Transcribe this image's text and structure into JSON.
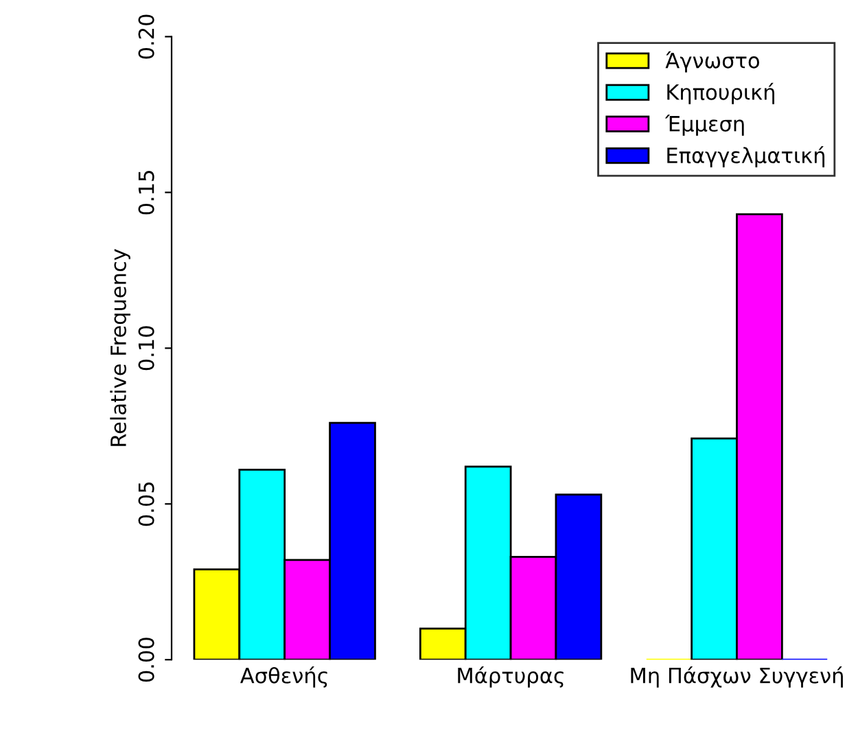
{
  "chart_data": {
    "type": "bar",
    "ylabel": "Relative Frequency",
    "categories": [
      "Ασθενής",
      "Μάρτυρας",
      "Μη Πάσχων Συγγενή"
    ],
    "series": [
      {
        "name": "Άγνωστο",
        "color": "#ffff00",
        "values": [
          0.029,
          0.01,
          0
        ]
      },
      {
        "name": "Κηπουρική",
        "color": "#00ffff",
        "values": [
          0.061,
          0.062,
          0.071
        ]
      },
      {
        "name": "Έμμεση",
        "color": "#ff00ff",
        "values": [
          0.032,
          0.033,
          0.143
        ]
      },
      {
        "name": "Επαγγελματική",
        "color": "#0000ff",
        "values": [
          0.076,
          0.053,
          0
        ]
      }
    ],
    "ylim": [
      0,
      0.2
    ],
    "yticks": [
      {
        "value": 0,
        "label": "0.00"
      },
      {
        "value": 0.05,
        "label": "0.05"
      },
      {
        "value": 0.1,
        "label": "0.10"
      },
      {
        "value": 0.15,
        "label": "0.15"
      },
      {
        "value": 0.2,
        "label": "0.20"
      }
    ],
    "grid": false,
    "legend": "top right"
  }
}
